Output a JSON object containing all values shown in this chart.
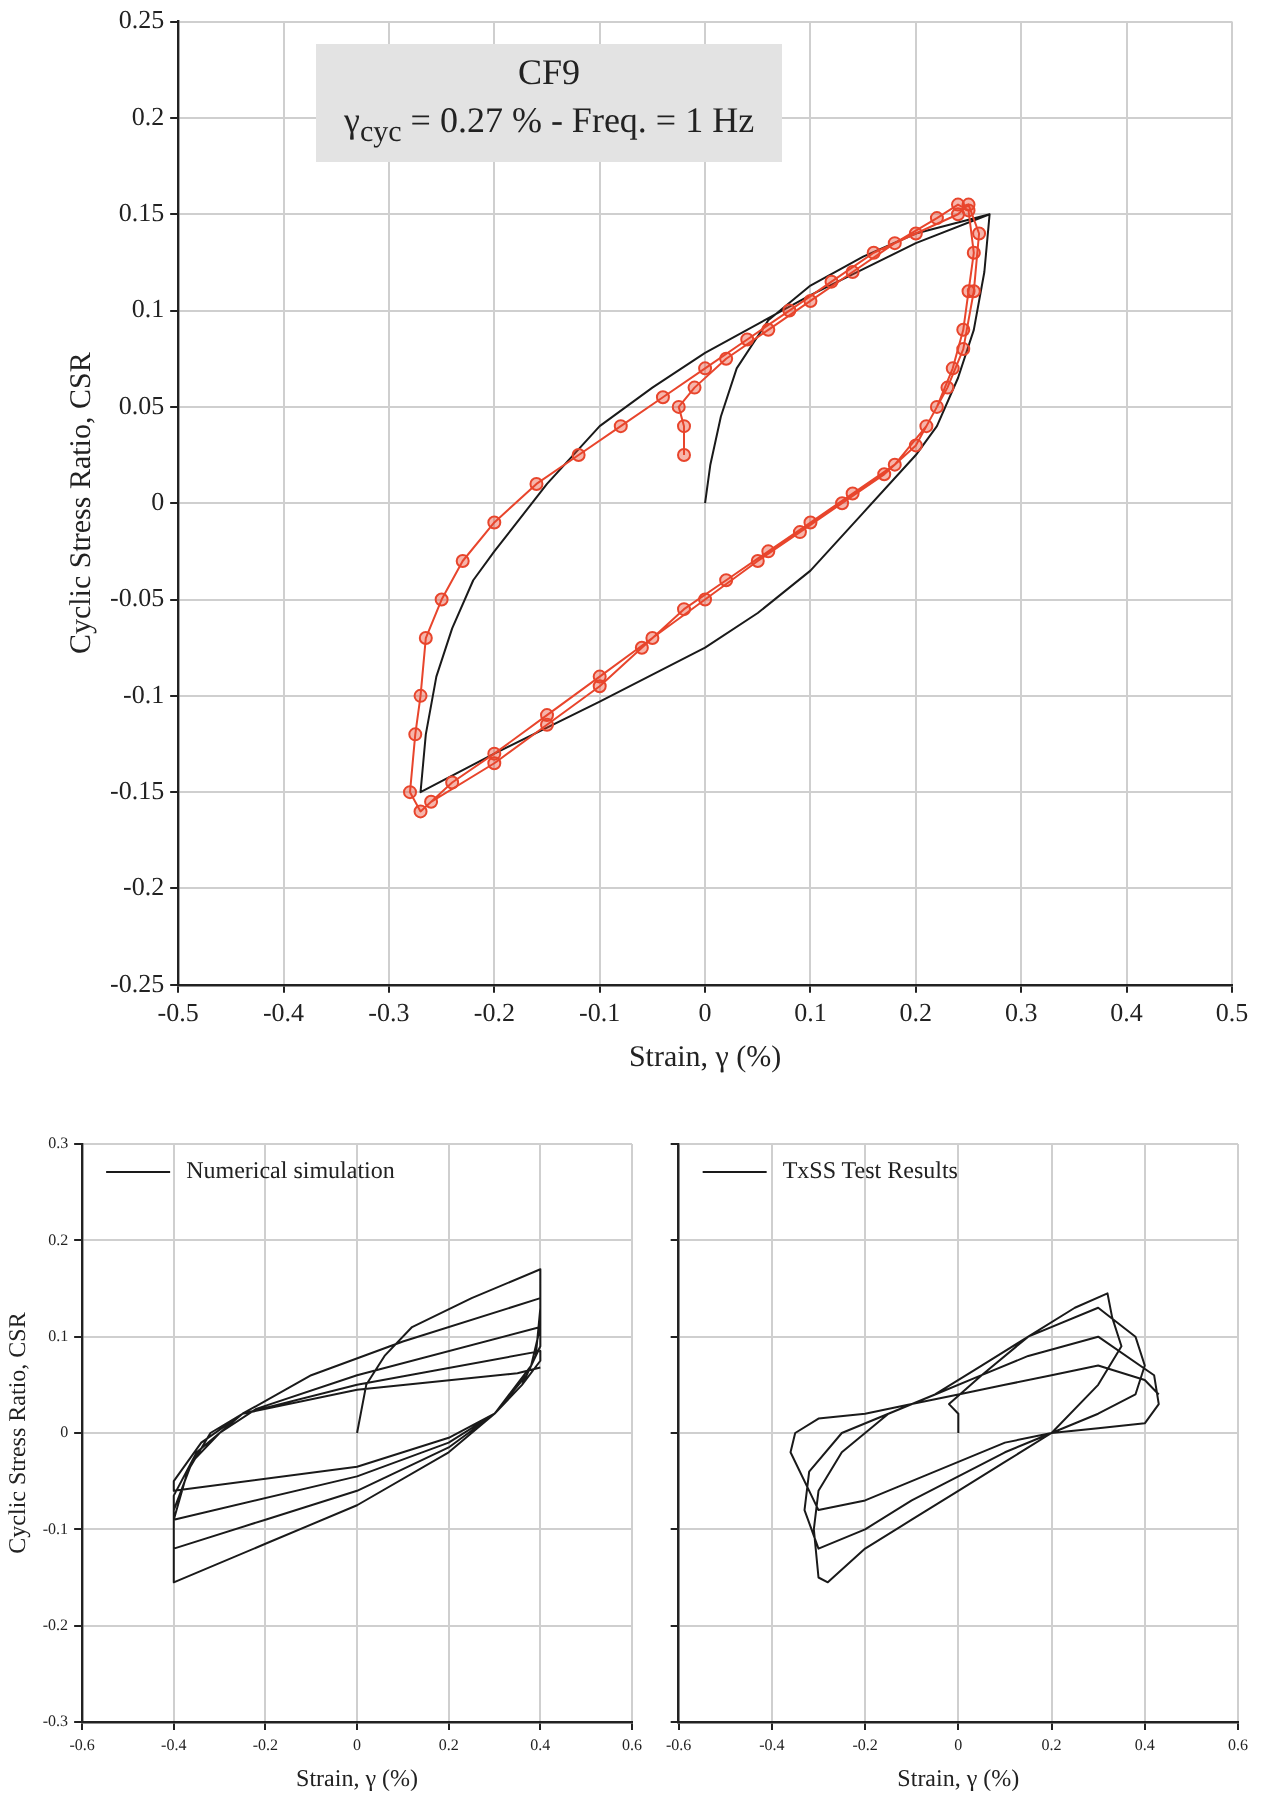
{
  "chart_data": [
    {
      "type": "line",
      "xlabel": "Strain, γ (%)",
      "ylabel": "Cyclic Stress Ratio, CSR",
      "annotations": [
        "CF9",
        "γ$_{cyc}$ = 0.27  % - Freq. = 1 Hz"
      ],
      "xlim": [
        -0.5,
        0.5
      ],
      "xticks": [
        -0.5,
        -0.4,
        -0.3,
        -0.2,
        -0.1,
        0,
        0.1,
        0.2,
        0.3,
        0.4,
        0.5
      ],
      "ylim": [
        -0.25,
        0.25
      ],
      "yticks": [
        -0.25,
        -0.2,
        -0.15,
        -0.1,
        -0.05,
        0,
        0.05,
        0.1,
        0.15,
        0.2,
        0.25
      ],
      "grid": true,
      "series": [
        {
          "color": "#e8452c",
          "marker": "circle",
          "x": [
            -0.02,
            -0.02,
            -0.025,
            -0.01,
            0.02,
            0.06,
            0.1,
            0.14,
            0.18,
            0.22,
            0.24,
            0.25,
            0.255,
            0.25,
            0.245,
            0.235,
            0.22,
            0.2,
            0.17,
            0.13,
            0.09,
            0.05,
            0.0,
            -0.05,
            -0.1,
            -0.15,
            -0.2,
            -0.24,
            -0.27,
            -0.28,
            -0.275,
            -0.27,
            -0.265,
            -0.25,
            -0.23,
            -0.2,
            -0.16,
            -0.12,
            -0.08,
            -0.04,
            0.0,
            0.04,
            0.08,
            0.12,
            0.16,
            0.2,
            0.24,
            0.25,
            0.26,
            0.255,
            0.245,
            0.23,
            0.21,
            0.18,
            0.14,
            0.1,
            0.06,
            0.02,
            -0.02,
            -0.06,
            -0.1,
            -0.15,
            -0.2,
            -0.26
          ],
          "values": [
            0.025,
            0.04,
            0.05,
            0.06,
            0.075,
            0.09,
            0.105,
            0.12,
            0.135,
            0.148,
            0.155,
            0.152,
            0.13,
            0.11,
            0.09,
            0.07,
            0.05,
            0.03,
            0.015,
            0.0,
            -0.015,
            -0.03,
            -0.05,
            -0.07,
            -0.09,
            -0.11,
            -0.13,
            -0.145,
            -0.16,
            -0.15,
            -0.12,
            -0.1,
            -0.07,
            -0.05,
            -0.03,
            -0.01,
            0.01,
            0.025,
            0.04,
            0.055,
            0.07,
            0.085,
            0.1,
            0.115,
            0.13,
            0.14,
            0.15,
            0.155,
            0.14,
            0.11,
            0.08,
            0.06,
            0.04,
            0.02,
            0.005,
            -0.01,
            -0.025,
            -0.04,
            -0.055,
            -0.075,
            -0.095,
            -0.115,
            -0.135,
            -0.155
          ]
        },
        {
          "color": "#1a1a1a",
          "marker": "none",
          "x": [
            0,
            0.005,
            0.015,
            0.03,
            0.06,
            0.1,
            0.15,
            0.2,
            0.27,
            0.265,
            0.255,
            0.24,
            0.22,
            0.2,
            0.15,
            0.1,
            0.05,
            0,
            -0.1,
            -0.2,
            -0.27,
            -0.265,
            -0.255,
            -0.24,
            -0.22,
            -0.2,
            -0.15,
            -0.1,
            -0.05,
            0,
            0.1,
            0.2,
            0.27
          ],
          "values": [
            0,
            0.02,
            0.045,
            0.07,
            0.095,
            0.113,
            0.128,
            0.14,
            0.15,
            0.12,
            0.09,
            0.065,
            0.04,
            0.025,
            -0.005,
            -0.035,
            -0.057,
            -0.075,
            -0.103,
            -0.13,
            -0.15,
            -0.12,
            -0.09,
            -0.065,
            -0.04,
            -0.025,
            0.01,
            0.04,
            0.06,
            0.078,
            0.108,
            0.135,
            0.15
          ]
        }
      ]
    },
    {
      "type": "line",
      "xlabel": "Strain, γ (%)",
      "ylabel": "Cyclic Stress Ratio, CSR",
      "xlim": [
        -0.6,
        0.6
      ],
      "xticks": [
        -0.6,
        -0.4,
        -0.2,
        0,
        0.2,
        0.4,
        0.6
      ],
      "ylim": [
        -0.3,
        0.3
      ],
      "yticks": [
        -0.3,
        -0.2,
        -0.1,
        0,
        0.1,
        0.2,
        0.3
      ],
      "grid": true,
      "legend": "top left",
      "series": [
        {
          "name": "Numerical simulation",
          "color": "#1a1a1a",
          "x": [
            0,
            0.02,
            0.06,
            0.12,
            0.25,
            0.4,
            0.4,
            0.39,
            0.36,
            0.3,
            0.2,
            0,
            -0.2,
            -0.4,
            -0.4,
            -0.37,
            -0.32,
            -0.25,
            -0.1,
            0.1,
            0.4,
            0.4,
            0.38,
            0.3,
            0.2,
            0,
            -0.2,
            -0.4,
            -0.4,
            -0.36,
            -0.3,
            -0.22,
            0,
            0.4,
            0.4,
            0.37,
            0.3,
            0.2,
            0,
            -0.4,
            -0.4,
            -0.35,
            -0.25,
            0,
            0.4,
            0.4,
            0.36,
            0.3,
            0.2,
            0,
            -0.4,
            -0.4,
            -0.34,
            -0.25,
            0,
            0.35,
            0.4
          ],
          "values": [
            0,
            0.05,
            0.08,
            0.11,
            0.14,
            0.17,
            0.13,
            0.08,
            0.05,
            0.02,
            -0.02,
            -0.075,
            -0.115,
            -0.155,
            -0.09,
            -0.04,
            0.0,
            0.02,
            0.06,
            0.095,
            0.14,
            0.11,
            0.07,
            0.02,
            -0.015,
            -0.06,
            -0.09,
            -0.12,
            -0.08,
            -0.03,
            0.0,
            0.025,
            0.06,
            0.11,
            0.09,
            0.06,
            0.02,
            -0.01,
            -0.045,
            -0.09,
            -0.065,
            -0.02,
            0.02,
            0.05,
            0.085,
            0.075,
            0.05,
            0.02,
            -0.005,
            -0.035,
            -0.06,
            -0.05,
            -0.01,
            0.02,
            0.045,
            0.062,
            0.068
          ]
        }
      ]
    },
    {
      "type": "line",
      "xlabel": "Strain, γ (%)",
      "xlim": [
        -0.6,
        0.6
      ],
      "xticks": [
        -0.6,
        -0.4,
        -0.2,
        0,
        0.2,
        0.4,
        0.6
      ],
      "ylim": [
        -0.3,
        0.3
      ],
      "yticks": [
        -0.3,
        -0.2,
        -0.1,
        0,
        0.1,
        0.2,
        0.3
      ],
      "tick_labels": "x",
      "grid": true,
      "legend": "top left",
      "series": [
        {
          "name": "TxSS Test Results",
          "color": "#1a1a1a",
          "x": [
            0,
            0.0,
            -0.02,
            0.05,
            0.15,
            0.25,
            0.32,
            0.33,
            0.35,
            0.3,
            0.2,
            0.1,
            0,
            -0.1,
            -0.2,
            -0.28,
            -0.3,
            -0.31,
            -0.3,
            -0.25,
            -0.15,
            -0.05,
            0.05,
            0.15,
            0.3,
            0.38,
            0.4,
            0.38,
            0.3,
            0.2,
            0.1,
            0,
            -0.1,
            -0.2,
            -0.3,
            -0.33,
            -0.32,
            -0.25,
            -0.15,
            -0.05,
            0.05,
            0.15,
            0.3,
            0.42,
            0.43,
            0.4,
            0.3,
            0.2,
            0.1,
            0,
            -0.1,
            -0.2,
            -0.3,
            -0.36,
            -0.35,
            -0.3,
            -0.2,
            -0.1,
            0,
            0.1,
            0.2,
            0.3,
            0.4,
            0.43
          ],
          "values": [
            0,
            0.02,
            0.03,
            0.06,
            0.1,
            0.13,
            0.145,
            0.12,
            0.09,
            0.05,
            0.0,
            -0.03,
            -0.06,
            -0.09,
            -0.12,
            -0.155,
            -0.15,
            -0.1,
            -0.06,
            -0.02,
            0.02,
            0.04,
            0.07,
            0.1,
            0.13,
            0.1,
            0.07,
            0.04,
            0.02,
            0.0,
            -0.02,
            -0.045,
            -0.07,
            -0.1,
            -0.12,
            -0.08,
            -0.04,
            0.0,
            0.02,
            0.04,
            0.06,
            0.08,
            0.1,
            0.06,
            0.03,
            0.01,
            0.005,
            0.0,
            -0.01,
            -0.03,
            -0.05,
            -0.07,
            -0.08,
            -0.02,
            0.0,
            0.015,
            0.02,
            0.03,
            0.04,
            0.05,
            0.06,
            0.07,
            0.055,
            0.04
          ]
        }
      ]
    }
  ]
}
